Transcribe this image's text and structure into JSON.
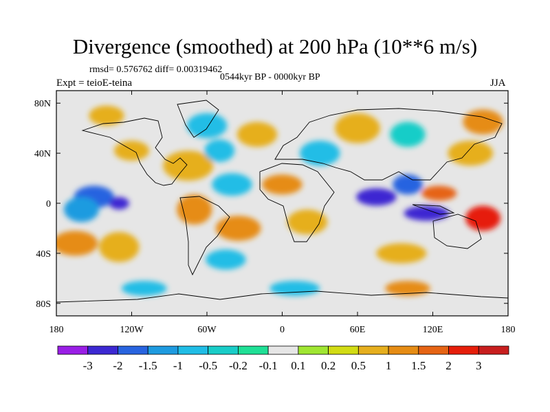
{
  "chart_data": {
    "type": "heatmap",
    "title": "Divergence (smoothed) at 200 hPa (10**6 m/s)",
    "stats_text": "rmsd= 0.576762 diff= 0.00319462",
    "period": "0544kyr BP - 0000kyr BP",
    "experiment": "Expt = teioE-teina",
    "season": "JJA",
    "xlim": [
      -180,
      180
    ],
    "ylim": [
      -90,
      90
    ],
    "x_ticks": [
      {
        "value": -180,
        "label": "180"
      },
      {
        "value": -120,
        "label": "120W"
      },
      {
        "value": -60,
        "label": "60W"
      },
      {
        "value": 0,
        "label": "0"
      },
      {
        "value": 60,
        "label": "60E"
      },
      {
        "value": 120,
        "label": "120E"
      },
      {
        "value": 180,
        "label": "180"
      }
    ],
    "y_ticks": [
      {
        "value": 80,
        "label": "80N"
      },
      {
        "value": 40,
        "label": "40N"
      },
      {
        "value": 0,
        "label": "0"
      },
      {
        "value": -40,
        "label": "40S"
      },
      {
        "value": -80,
        "label": "80S"
      }
    ],
    "colorbar": {
      "labels": [
        "-3",
        "-2",
        "-1.5",
        "-1",
        "-0.5",
        "-0.2",
        "-0.1",
        "0.1",
        "0.2",
        "0.5",
        "1",
        "1.5",
        "2",
        "3"
      ],
      "colors": [
        "#9a1ee6",
        "#3c28d2",
        "#2864e0",
        "#1e9be0",
        "#20bde6",
        "#19cdc8",
        "#1fe096",
        "#e6e6e6",
        "#a0e632",
        "#d2dc14",
        "#e6af1e",
        "#e68c14",
        "#e66414",
        "#e61e0a",
        "#c81e1e"
      ]
    },
    "features": [
      {
        "lon": -150,
        "lat": 5,
        "rx": 16,
        "ry": 9,
        "level": 2
      },
      {
        "lon": -130,
        "lat": 0,
        "rx": 8,
        "ry": 5,
        "level": 1
      },
      {
        "lon": -160,
        "lat": -5,
        "rx": 14,
        "ry": 10,
        "level": 3
      },
      {
        "lon": -165,
        "lat": -32,
        "rx": 18,
        "ry": 10,
        "level": 11
      },
      {
        "lon": -130,
        "lat": -35,
        "rx": 16,
        "ry": 12,
        "level": 10
      },
      {
        "lon": -120,
        "lat": 42,
        "rx": 14,
        "ry": 8,
        "level": 10
      },
      {
        "lon": -75,
        "lat": 30,
        "rx": 20,
        "ry": 12,
        "level": 10
      },
      {
        "lon": -60,
        "lat": 62,
        "rx": 16,
        "ry": 10,
        "level": 4
      },
      {
        "lon": -50,
        "lat": 42,
        "rx": 12,
        "ry": 9,
        "level": 4
      },
      {
        "lon": -20,
        "lat": 55,
        "rx": 16,
        "ry": 10,
        "level": 10
      },
      {
        "lon": -40,
        "lat": 15,
        "rx": 16,
        "ry": 9,
        "level": 4
      },
      {
        "lon": -70,
        "lat": -5,
        "rx": 14,
        "ry": 12,
        "level": 11
      },
      {
        "lon": -35,
        "lat": -20,
        "rx": 18,
        "ry": 10,
        "level": 11
      },
      {
        "lon": -45,
        "lat": -45,
        "rx": 16,
        "ry": 8,
        "level": 4
      },
      {
        "lon": 0,
        "lat": 15,
        "rx": 16,
        "ry": 8,
        "level": 11
      },
      {
        "lon": 20,
        "lat": -15,
        "rx": 16,
        "ry": 10,
        "level": 10
      },
      {
        "lon": 30,
        "lat": 40,
        "rx": 16,
        "ry": 10,
        "level": 4
      },
      {
        "lon": 60,
        "lat": 60,
        "rx": 18,
        "ry": 12,
        "level": 10
      },
      {
        "lon": 75,
        "lat": 5,
        "rx": 16,
        "ry": 7,
        "level": 1
      },
      {
        "lon": 100,
        "lat": 15,
        "rx": 12,
        "ry": 8,
        "level": 2
      },
      {
        "lon": 115,
        "lat": -8,
        "rx": 18,
        "ry": 6,
        "level": 1
      },
      {
        "lon": 125,
        "lat": 8,
        "rx": 14,
        "ry": 6,
        "level": 12
      },
      {
        "lon": 160,
        "lat": -12,
        "rx": 14,
        "ry": 10,
        "level": 13
      },
      {
        "lon": 150,
        "lat": 40,
        "rx": 18,
        "ry": 10,
        "level": 10
      },
      {
        "lon": 95,
        "lat": -40,
        "rx": 20,
        "ry": 8,
        "level": 10
      },
      {
        "lon": 100,
        "lat": 55,
        "rx": 14,
        "ry": 10,
        "level": 5
      },
      {
        "lon": 160,
        "lat": 65,
        "rx": 16,
        "ry": 10,
        "level": 11
      },
      {
        "lon": 10,
        "lat": -68,
        "rx": 20,
        "ry": 6,
        "level": 4
      },
      {
        "lon": 100,
        "lat": -68,
        "rx": 18,
        "ry": 6,
        "level": 11
      },
      {
        "lon": -110,
        "lat": -68,
        "rx": 18,
        "ry": 6,
        "level": 4
      },
      {
        "lon": -140,
        "lat": 70,
        "rx": 14,
        "ry": 8,
        "level": 10
      }
    ]
  }
}
